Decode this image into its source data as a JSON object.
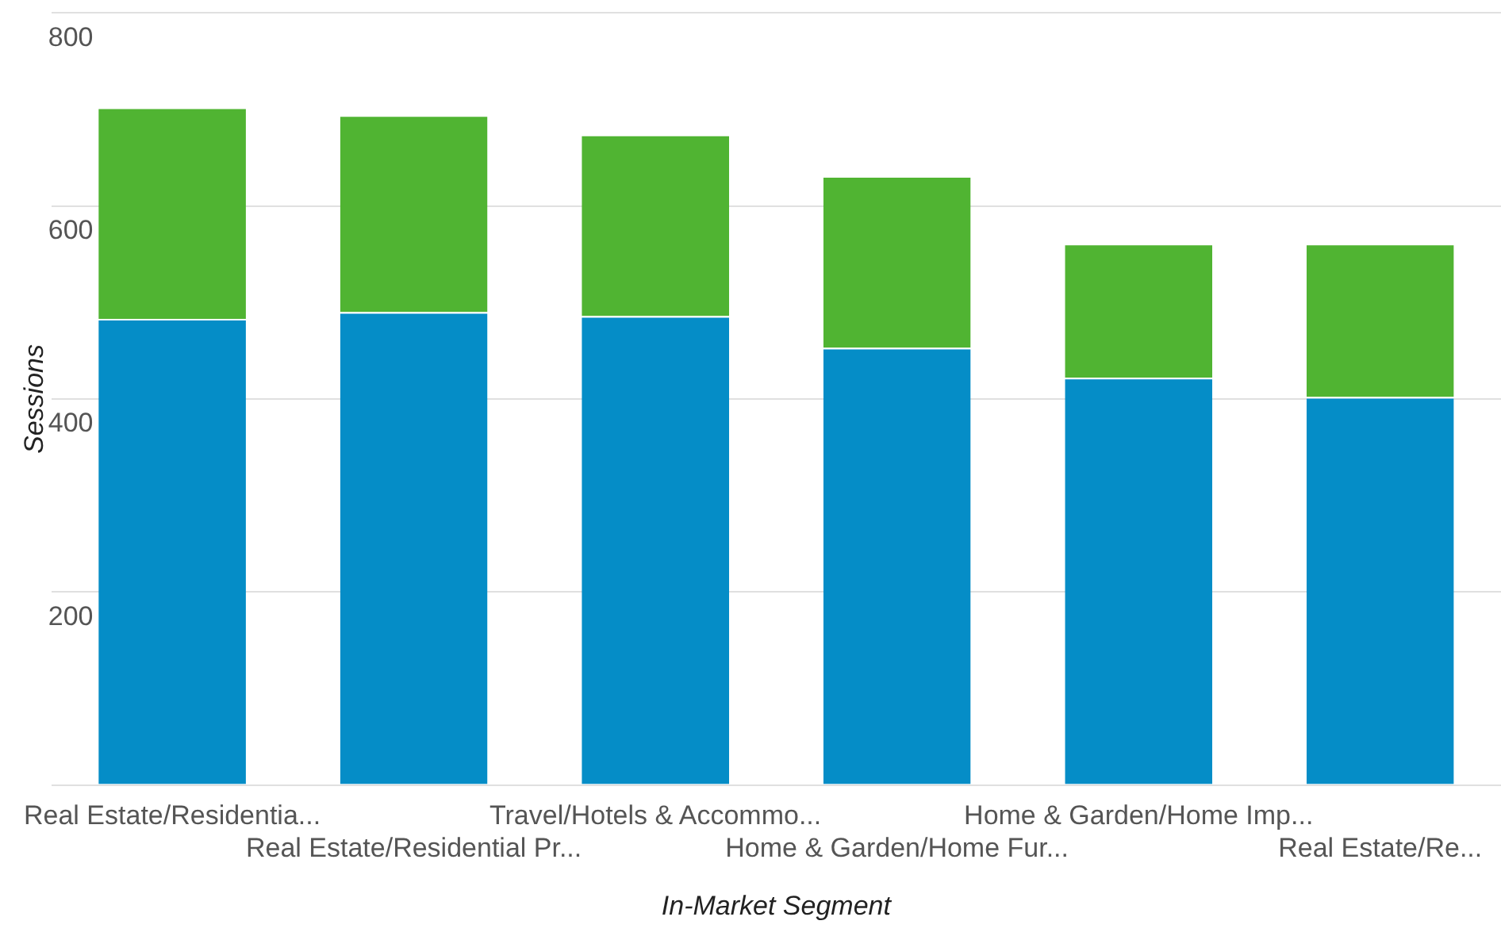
{
  "chart_data": {
    "type": "bar",
    "stacked": true,
    "xlabel": "In-Market Segment",
    "ylabel": "Sessions",
    "categories": [
      "Real Estate/Residentia...",
      "Real Estate/Residential Pr...",
      "Travel/Hotels & Accommo...",
      "Home & Garden/Home Fur...",
      "Home & Garden/Home Imp...",
      "Real Estate/Re..."
    ],
    "series": [
      {
        "color": "#058dc7",
        "values": [
          483,
          490,
          486,
          453,
          422,
          402
        ]
      },
      {
        "color": "#50b432",
        "values": [
          219,
          204,
          188,
          178,
          139,
          159
        ]
      }
    ],
    "ylim": [
      0,
      800
    ],
    "yticks": [
      {
        "value": 0,
        "label": null
      },
      200,
      400,
      600,
      800
    ],
    "grid": "y",
    "legend": false
  }
}
